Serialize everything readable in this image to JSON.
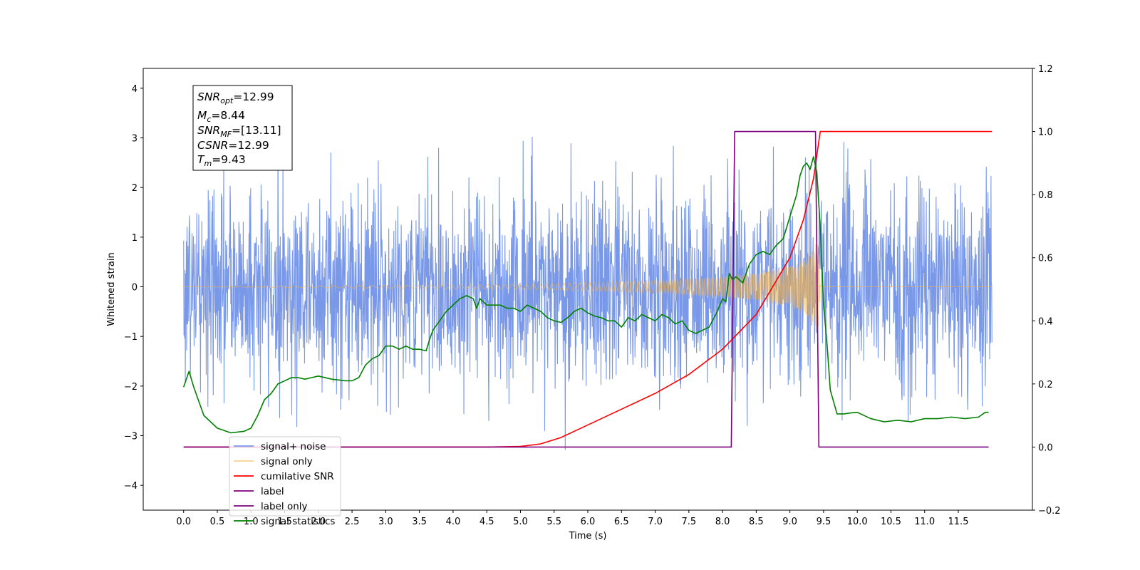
{
  "chart_data": {
    "type": "line",
    "title": "",
    "xlabel": "Time (s)",
    "ylabel_left": "Whitened strain",
    "ylabel_right": "",
    "xlim": [
      -0.6,
      12.6
    ],
    "ylim_left": [
      -4.5,
      4.4
    ],
    "ylim_right": [
      -0.2,
      1.2
    ],
    "x_ticks": [
      "0.0",
      "0.5",
      "1.0",
      "1.5",
      "2.0",
      "2.5",
      "3.0",
      "3.5",
      "4.0",
      "4.5",
      "5.0",
      "5.5",
      "6.0",
      "6.5",
      "7.0",
      "7.5",
      "8.0",
      "8.5",
      "9.0",
      "9.5",
      "10.0",
      "10.5",
      "11.0",
      "11.5"
    ],
    "y_ticks_left": [
      "−4",
      "−3",
      "−2",
      "−1",
      "0",
      "1",
      "2",
      "3",
      "4"
    ],
    "y_ticks_right": [
      "−0.2",
      "0.0",
      "0.2",
      "0.4",
      "0.6",
      "0.8",
      "1.0",
      "1.2"
    ],
    "grid": false,
    "legend_position": "lower-left",
    "info_box": {
      "snr_opt": "=12.99",
      "mc": "=8.44",
      "snr_mf": "=[13.11]",
      "csnr": "=12.99",
      "tm": "=9.43"
    },
    "series": [
      {
        "name": "signal+ noise",
        "axis": "left",
        "color": "#6f8fe6",
        "description_values": "white noise, std ≈ 1.0, peaks ≈ ±4, on 0.0–12.0 s",
        "noise_std": 1.0,
        "x_range": [
          0.0,
          12.0
        ]
      },
      {
        "name": "signal only",
        "axis": "left",
        "color": "#f5b041",
        "chirp_envelope": {
          "x": [
            0.0,
            5.0,
            7.0,
            8.0,
            8.5,
            9.0,
            9.2,
            9.35,
            9.43,
            9.45,
            12.0
          ],
          "amp": [
            0.0,
            0.05,
            0.12,
            0.2,
            0.28,
            0.4,
            0.52,
            0.75,
            1.0,
            0.0,
            0.0
          ]
        }
      },
      {
        "name": "cumilative SNR",
        "axis": "right",
        "color": "#ff0000",
        "x": [
          0.0,
          4.5,
          5.0,
          5.3,
          5.6,
          6.0,
          6.5,
          7.0,
          7.5,
          8.0,
          8.5,
          9.0,
          9.2,
          9.35,
          9.43,
          9.45,
          12.0
        ],
        "y": [
          0.0,
          0.0,
          0.002,
          0.01,
          0.03,
          0.07,
          0.12,
          0.17,
          0.23,
          0.31,
          0.42,
          0.6,
          0.72,
          0.85,
          0.97,
          1.0,
          1.0
        ]
      },
      {
        "name": "label",
        "axis": "right",
        "color": "#800080",
        "x": [
          0.0,
          8.13,
          8.18,
          9.38,
          9.43,
          11.95
        ],
        "y": [
          0.0,
          0.0,
          1.0,
          1.0,
          0.0,
          0.0
        ]
      },
      {
        "name": "label only",
        "axis": "right",
        "color": "#800080",
        "hidden": true
      },
      {
        "name": "signal statistics",
        "axis": "right",
        "color": "#008000",
        "x": [
          0.0,
          0.08,
          0.15,
          0.3,
          0.5,
          0.7,
          0.9,
          1.0,
          1.1,
          1.2,
          1.3,
          1.4,
          1.5,
          1.6,
          1.7,
          1.8,
          1.9,
          2.0,
          2.2,
          2.4,
          2.5,
          2.6,
          2.7,
          2.8,
          2.9,
          3.0,
          3.1,
          3.2,
          3.3,
          3.4,
          3.5,
          3.6,
          3.65,
          3.7,
          3.8,
          3.9,
          4.0,
          4.1,
          4.2,
          4.3,
          4.35,
          4.4,
          4.5,
          4.6,
          4.7,
          4.8,
          4.9,
          5.0,
          5.1,
          5.2,
          5.3,
          5.4,
          5.5,
          5.6,
          5.7,
          5.8,
          5.9,
          6.0,
          6.1,
          6.2,
          6.3,
          6.4,
          6.5,
          6.6,
          6.7,
          6.8,
          6.9,
          7.0,
          7.1,
          7.2,
          7.3,
          7.4,
          7.5,
          7.6,
          7.7,
          7.8,
          7.9,
          8.0,
          8.05,
          8.1,
          8.15,
          8.2,
          8.3,
          8.4,
          8.5,
          8.6,
          8.7,
          8.8,
          8.9,
          9.0,
          9.1,
          9.15,
          9.2,
          9.25,
          9.3,
          9.35,
          9.4,
          9.45,
          9.5,
          9.55,
          9.6,
          9.7,
          9.8,
          9.9,
          10.0,
          10.2,
          10.4,
          10.6,
          10.8,
          11.0,
          11.2,
          11.4,
          11.6,
          11.8,
          11.9,
          11.95
        ],
        "y": [
          0.19,
          0.24,
          0.19,
          0.1,
          0.06,
          0.045,
          0.05,
          0.06,
          0.1,
          0.15,
          0.17,
          0.2,
          0.21,
          0.22,
          0.22,
          0.215,
          0.22,
          0.225,
          0.215,
          0.21,
          0.21,
          0.22,
          0.26,
          0.28,
          0.29,
          0.32,
          0.32,
          0.31,
          0.32,
          0.31,
          0.31,
          0.305,
          0.34,
          0.37,
          0.4,
          0.43,
          0.45,
          0.47,
          0.48,
          0.47,
          0.44,
          0.47,
          0.45,
          0.45,
          0.45,
          0.44,
          0.44,
          0.43,
          0.45,
          0.44,
          0.43,
          0.41,
          0.4,
          0.395,
          0.41,
          0.43,
          0.44,
          0.425,
          0.415,
          0.41,
          0.4,
          0.4,
          0.38,
          0.41,
          0.4,
          0.42,
          0.41,
          0.4,
          0.42,
          0.41,
          0.39,
          0.4,
          0.37,
          0.36,
          0.37,
          0.38,
          0.42,
          0.47,
          0.46,
          0.55,
          0.53,
          0.54,
          0.52,
          0.58,
          0.61,
          0.62,
          0.61,
          0.64,
          0.66,
          0.73,
          0.8,
          0.86,
          0.89,
          0.9,
          0.88,
          0.92,
          0.87,
          0.7,
          0.45,
          0.33,
          0.18,
          0.105,
          0.105,
          0.108,
          0.11,
          0.09,
          0.08,
          0.085,
          0.08,
          0.09,
          0.09,
          0.095,
          0.09,
          0.095,
          0.11,
          0.11
        ]
      }
    ]
  },
  "legend": {
    "items": [
      {
        "label": "signal+ noise",
        "color": "#6f8fe6",
        "opacity": 0.9
      },
      {
        "label": "signal only",
        "color": "#f5b041",
        "opacity": 0.6
      },
      {
        "label": "cumilative SNR",
        "color": "#ff0000",
        "opacity": 1
      },
      {
        "label": "label",
        "color": "#800080",
        "opacity": 1
      },
      {
        "label": "label only",
        "color": "#800080",
        "opacity": 1
      },
      {
        "label": "signal statistics",
        "color": "#008000",
        "opacity": 1
      }
    ]
  }
}
